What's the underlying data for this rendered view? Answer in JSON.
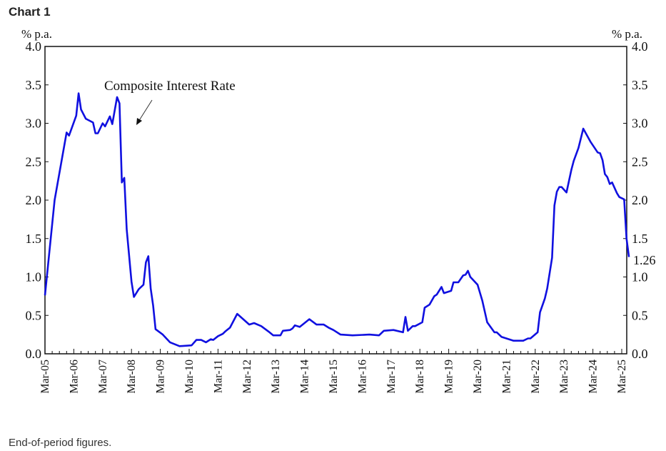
{
  "chart_data": {
    "type": "line",
    "title": "Chart 1",
    "ylabel_left": "% p.a.",
    "ylabel_right": "% p.a.",
    "ylim": [
      0,
      4.0
    ],
    "yticks": [
      "0.0",
      "0.5",
      "1.0",
      "1.5",
      "2.0",
      "2.5",
      "3.0",
      "3.5",
      "4.0"
    ],
    "xticks": [
      "Mar-05",
      "Mar-06",
      "Mar-07",
      "Mar-08",
      "Mar-09",
      "Mar-10",
      "Mar-11",
      "Mar-12",
      "Mar-13",
      "Mar-14",
      "Mar-15",
      "Mar-16",
      "Mar-17",
      "Mar-18",
      "Mar-19",
      "Mar-20",
      "Mar-21",
      "Mar-22",
      "Mar-23",
      "Mar-24",
      "Mar-25"
    ],
    "grid": false,
    "annotation": "Composite Interest Rate",
    "last_value_label": "1.26",
    "line_color": "#1010e0",
    "series": [
      {
        "x": [
          "2005-03",
          "2005-07",
          "2005-12",
          "2006-01",
          "2006-04",
          "2006-05",
          "2006-06",
          "2006-08",
          "2006-11",
          "2006-12",
          "2007-01",
          "2007-03",
          "2007-04",
          "2007-06",
          "2007-07",
          "2007-09",
          "2007-10",
          "2007-11",
          "2007-12",
          "2008-01",
          "2008-03",
          "2008-04",
          "2008-06",
          "2008-08",
          "2008-09",
          "2008-10",
          "2008-11",
          "2008-12",
          "2009-01",
          "2009-04",
          "2009-07",
          "2009-11",
          "2010-04",
          "2010-06",
          "2010-08",
          "2010-10",
          "2010-12",
          "2011-01",
          "2011-03",
          "2011-05",
          "2011-06",
          "2011-08",
          "2011-11",
          "2012-04",
          "2012-06",
          "2012-09",
          "2012-12",
          "2013-02",
          "2013-05",
          "2013-06",
          "2013-09",
          "2013-10",
          "2013-11",
          "2014-01",
          "2014-03",
          "2014-05",
          "2014-08",
          "2014-11",
          "2015-01",
          "2015-03",
          "2015-06",
          "2015-11",
          "2016-06",
          "2016-10",
          "2016-12",
          "2017-04",
          "2017-08",
          "2017-09",
          "2017-10",
          "2017-12",
          "2018-01",
          "2018-04",
          "2018-05",
          "2018-07",
          "2018-09",
          "2018-10",
          "2018-12",
          "2019-01",
          "2019-04",
          "2019-05",
          "2019-07",
          "2019-09",
          "2019-10",
          "2019-11",
          "2019-12",
          "2020-03",
          "2020-05",
          "2020-07",
          "2020-10",
          "2020-11",
          "2021-01",
          "2021-06",
          "2021-10",
          "2021-12",
          "2022-01",
          "2022-04",
          "2022-05",
          "2022-07",
          "2022-08",
          "2022-10",
          "2022-11",
          "2022-12",
          "2023-01",
          "2023-02",
          "2023-04",
          "2023-06",
          "2023-07",
          "2023-09",
          "2023-11",
          "2024-02",
          "2024-05",
          "2024-06",
          "2024-07",
          "2024-08",
          "2024-09",
          "2024-10",
          "2024-11",
          "2025-01",
          "2025-02",
          "2025-04",
          "2025-05",
          "2025-06"
        ],
        "y": [
          0.76,
          2.0,
          2.88,
          2.84,
          3.1,
          3.39,
          3.18,
          3.06,
          3.01,
          2.87,
          2.87,
          3.0,
          2.96,
          3.09,
          2.99,
          3.34,
          3.26,
          2.23,
          2.29,
          1.62,
          0.94,
          0.74,
          0.84,
          0.9,
          1.19,
          1.27,
          0.85,
          0.63,
          0.32,
          0.25,
          0.15,
          0.1,
          0.11,
          0.18,
          0.18,
          0.15,
          0.19,
          0.18,
          0.23,
          0.26,
          0.29,
          0.34,
          0.52,
          0.38,
          0.4,
          0.36,
          0.29,
          0.24,
          0.24,
          0.3,
          0.31,
          0.33,
          0.37,
          0.35,
          0.4,
          0.45,
          0.38,
          0.38,
          0.34,
          0.31,
          0.25,
          0.24,
          0.25,
          0.24,
          0.3,
          0.31,
          0.28,
          0.48,
          0.3,
          0.36,
          0.36,
          0.41,
          0.6,
          0.64,
          0.75,
          0.77,
          0.87,
          0.79,
          0.82,
          0.93,
          0.93,
          1.02,
          1.03,
          1.08,
          1.0,
          0.9,
          0.69,
          0.41,
          0.28,
          0.28,
          0.22,
          0.17,
          0.17,
          0.2,
          0.2,
          0.28,
          0.54,
          0.72,
          0.85,
          1.25,
          1.93,
          2.11,
          2.17,
          2.17,
          2.1,
          2.39,
          2.51,
          2.68,
          2.93,
          2.76,
          2.62,
          2.61,
          2.52,
          2.34,
          2.3,
          2.21,
          2.23,
          2.09,
          2.04,
          2.01,
          1.5,
          1.26
        ]
      }
    ]
  },
  "footnote": "End-of-period figures."
}
